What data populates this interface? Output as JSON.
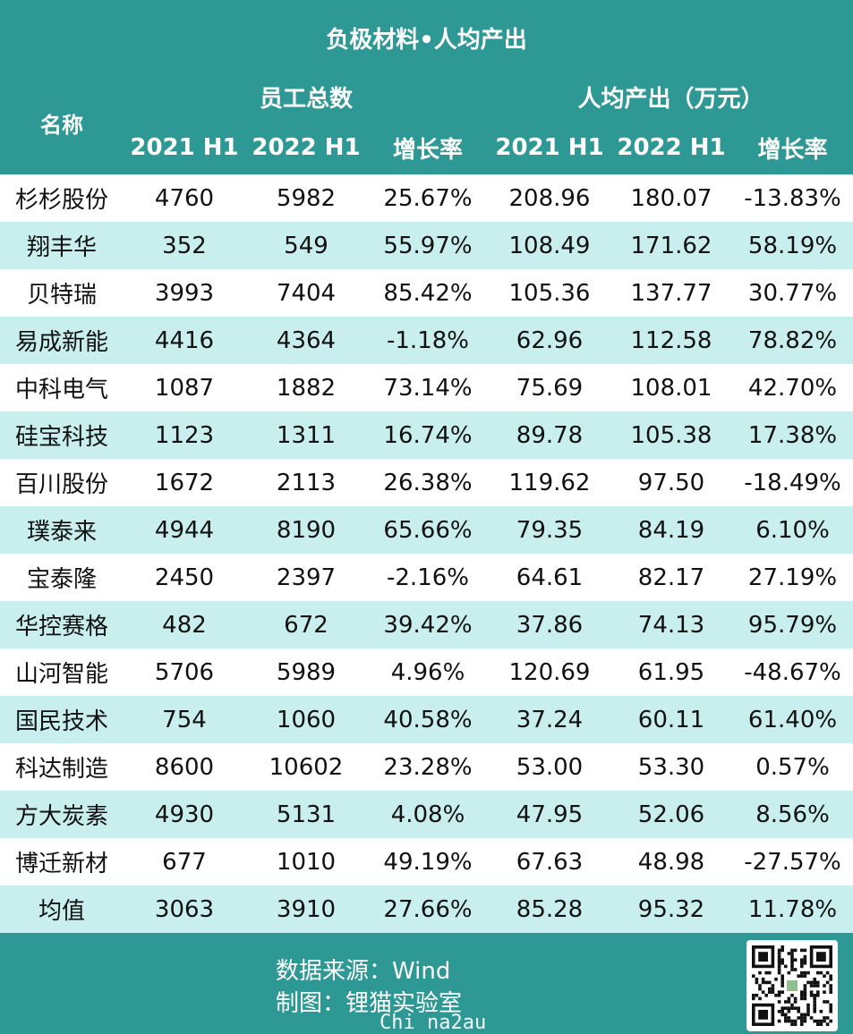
{
  "header": {
    "title": "负极材料•人均产出",
    "name_col": "名称",
    "group_staff": "员工总数",
    "group_output": "人均产出（万元）",
    "sub_labels": [
      "2021 H1",
      "2022 H1",
      "增长率",
      "2021 H1",
      "2022 H1",
      "增长率"
    ]
  },
  "chart_data": {
    "type": "table",
    "title": "负极材料•人均产出",
    "columns": [
      "名称",
      "员工总数 2021 H1",
      "员工总数 2022 H1",
      "员工总数 增长率",
      "人均产出（万元） 2021 H1",
      "人均产出（万元） 2022 H1",
      "人均产出（万元） 增长率"
    ],
    "rows": [
      [
        "杉杉股份",
        "4760",
        "5982",
        "25.67%",
        "208.96",
        "180.07",
        "-13.83%"
      ],
      [
        "翔丰华",
        "352",
        "549",
        "55.97%",
        "108.49",
        "171.62",
        "58.19%"
      ],
      [
        "贝特瑞",
        "3993",
        "7404",
        "85.42%",
        "105.36",
        "137.77",
        "30.77%"
      ],
      [
        "易成新能",
        "4416",
        "4364",
        "-1.18%",
        "62.96",
        "112.58",
        "78.82%"
      ],
      [
        "中科电气",
        "1087",
        "1882",
        "73.14%",
        "75.69",
        "108.01",
        "42.70%"
      ],
      [
        "硅宝科技",
        "1123",
        "1311",
        "16.74%",
        "89.78",
        "105.38",
        "17.38%"
      ],
      [
        "百川股份",
        "1672",
        "2113",
        "26.38%",
        "119.62",
        "97.50",
        "-18.49%"
      ],
      [
        "璞泰来",
        "4944",
        "8190",
        "65.66%",
        "79.35",
        "84.19",
        "6.10%"
      ],
      [
        "宝泰隆",
        "2450",
        "2397",
        "-2.16%",
        "64.61",
        "82.17",
        "27.19%"
      ],
      [
        "华控赛格",
        "482",
        "672",
        "39.42%",
        "37.86",
        "74.13",
        "95.79%"
      ],
      [
        "山河智能",
        "5706",
        "5989",
        "4.96%",
        "120.69",
        "61.95",
        "-48.67%"
      ],
      [
        "国民技术",
        "754",
        "1060",
        "40.58%",
        "37.24",
        "60.11",
        "61.40%"
      ],
      [
        "科达制造",
        "8600",
        "10602",
        "23.28%",
        "53.00",
        "53.30",
        "0.57%"
      ],
      [
        "方大炭素",
        "4930",
        "5131",
        "4.08%",
        "47.95",
        "52.06",
        "8.56%"
      ],
      [
        "博迁新材",
        "677",
        "1010",
        "49.19%",
        "67.63",
        "48.98",
        "-27.57%"
      ],
      [
        "均值",
        "3063",
        "3910",
        "27.66%",
        "85.28",
        "95.32",
        "11.78%"
      ]
    ]
  },
  "footer": {
    "source": "数据来源：Wind",
    "made_by": "制图：锂猫实验室",
    "watermark": "Chi na2au",
    "qr_icon": "qr-code-icon"
  },
  "colors": {
    "header_bg": "#2e9894",
    "alt_row_bg": "#c8eeed",
    "row_bg": "#ffffff",
    "text": "#111111"
  }
}
